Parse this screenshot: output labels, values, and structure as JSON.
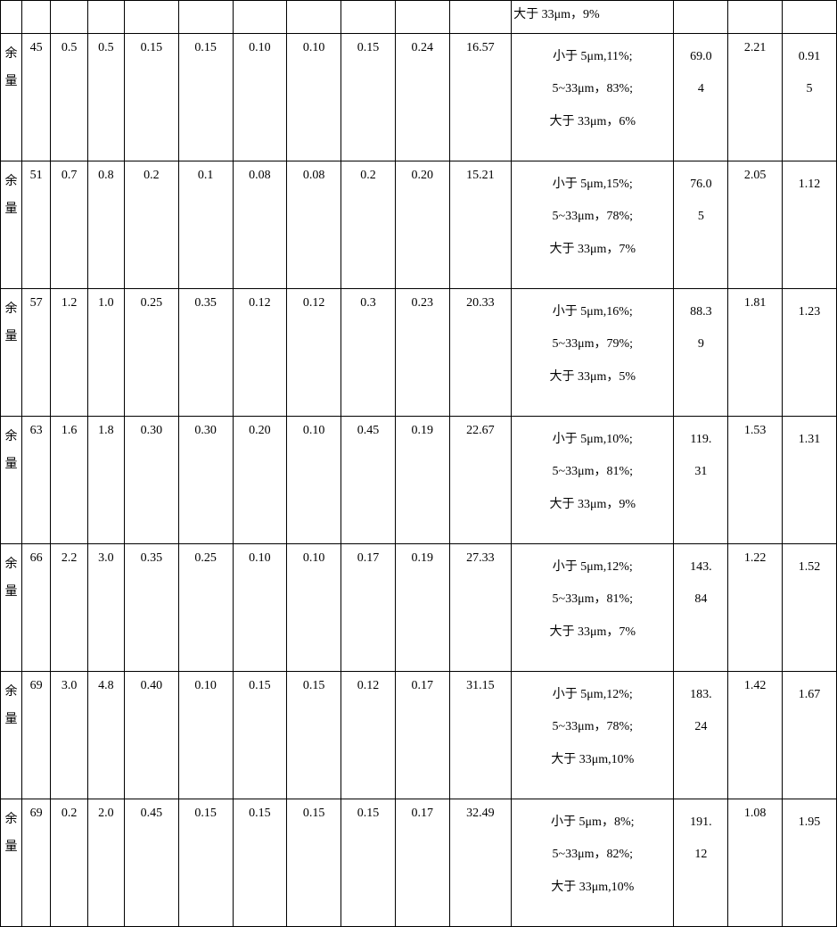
{
  "table": {
    "header_remnant": {
      "cells": [
        "",
        "",
        "",
        "",
        "",
        "",
        "",
        "",
        "",
        "",
        "",
        "大于 33μm，9%",
        "",
        "",
        ""
      ]
    },
    "rows": [
      {
        "c0": "余量",
        "c1": "45",
        "c2": "0.5",
        "c3": "0.5",
        "c4": "0.15",
        "c5": "0.15",
        "c6": "0.10",
        "c7": "0.10",
        "c8": "0.15",
        "c9": "0.24",
        "c10": "16.57",
        "c11_a": "小于 5μm,11%;",
        "c11_b": "5~33μm，83%;",
        "c11_c": "大于 33μm，6%",
        "c12_a": "69.0",
        "c12_b": "4",
        "c13": "2.21",
        "c14_a": "0.91",
        "c14_b": "5"
      },
      {
        "c0": "余量",
        "c1": "51",
        "c2": "0.7",
        "c3": "0.8",
        "c4": "0.2",
        "c5": "0.1",
        "c6": "0.08",
        "c7": "0.08",
        "c8": "0.2",
        "c9": "0.20",
        "c10": "15.21",
        "c11_a": "小于 5μm,15%;",
        "c11_b": "5~33μm，78%;",
        "c11_c": "大于 33μm，7%",
        "c12_a": "76.0",
        "c12_b": "5",
        "c13": "2.05",
        "c14_a": "1.12",
        "c14_b": ""
      },
      {
        "c0": "余量",
        "c1": "57",
        "c2": "1.2",
        "c3": "1.0",
        "c4": "0.25",
        "c5": "0.35",
        "c6": "0.12",
        "c7": "0.12",
        "c8": "0.3",
        "c9": "0.23",
        "c10": "20.33",
        "c11_a": "小于 5μm,16%;",
        "c11_b": "5~33μm，79%;",
        "c11_c": "大于 33μm，5%",
        "c12_a": "88.3",
        "c12_b": "9",
        "c13": "1.81",
        "c14_a": "1.23",
        "c14_b": ""
      },
      {
        "c0": "余量",
        "c1": "63",
        "c2": "1.6",
        "c3": "1.8",
        "c4": "0.30",
        "c5": "0.30",
        "c6": "0.20",
        "c7": "0.10",
        "c8": "0.45",
        "c9": "0.19",
        "c10": "22.67",
        "c11_a": "小于 5μm,10%;",
        "c11_b": "5~33μm，81%;",
        "c11_c": "大于 33μm，9%",
        "c12_a": "119.",
        "c12_b": "31",
        "c13": "1.53",
        "c14_a": "1.31",
        "c14_b": ""
      },
      {
        "c0": "余量",
        "c1": "66",
        "c2": "2.2",
        "c3": "3.0",
        "c4": "0.35",
        "c5": "0.25",
        "c6": "0.10",
        "c7": "0.10",
        "c8": "0.17",
        "c9": "0.19",
        "c10": "27.33",
        "c11_a": "小于 5μm,12%;",
        "c11_b": "5~33μm，81%;",
        "c11_c": "大于 33μm，7%",
        "c12_a": "143.",
        "c12_b": "84",
        "c13": "1.22",
        "c14_a": "1.52",
        "c14_b": ""
      },
      {
        "c0": "余量",
        "c1": "69",
        "c2": "3.0",
        "c3": "4.8",
        "c4": "0.40",
        "c5": "0.10",
        "c6": "0.15",
        "c7": "0.15",
        "c8": "0.12",
        "c9": "0.17",
        "c10": "31.15",
        "c11_a": "小于 5μm,12%;",
        "c11_b": "5~33μm，78%;",
        "c11_c": "大于 33μm,10%",
        "c12_a": "183.",
        "c12_b": "24",
        "c13": "1.42",
        "c14_a": "1.67",
        "c14_b": ""
      },
      {
        "c0": "余量",
        "c1": "69",
        "c2": "0.2",
        "c3": "2.0",
        "c4": "0.45",
        "c5": "0.15",
        "c6": "0.15",
        "c7": "0.15",
        "c8": "0.15",
        "c9": "0.17",
        "c10": "32.49",
        "c11_a": "小于 5μm，8%;",
        "c11_b": "5~33μm，82%;",
        "c11_c": "大于 33μm,10%",
        "c12_a": "191.",
        "c12_b": "12",
        "c13": "1.08",
        "c14_a": "1.95",
        "c14_b": ""
      }
    ]
  }
}
